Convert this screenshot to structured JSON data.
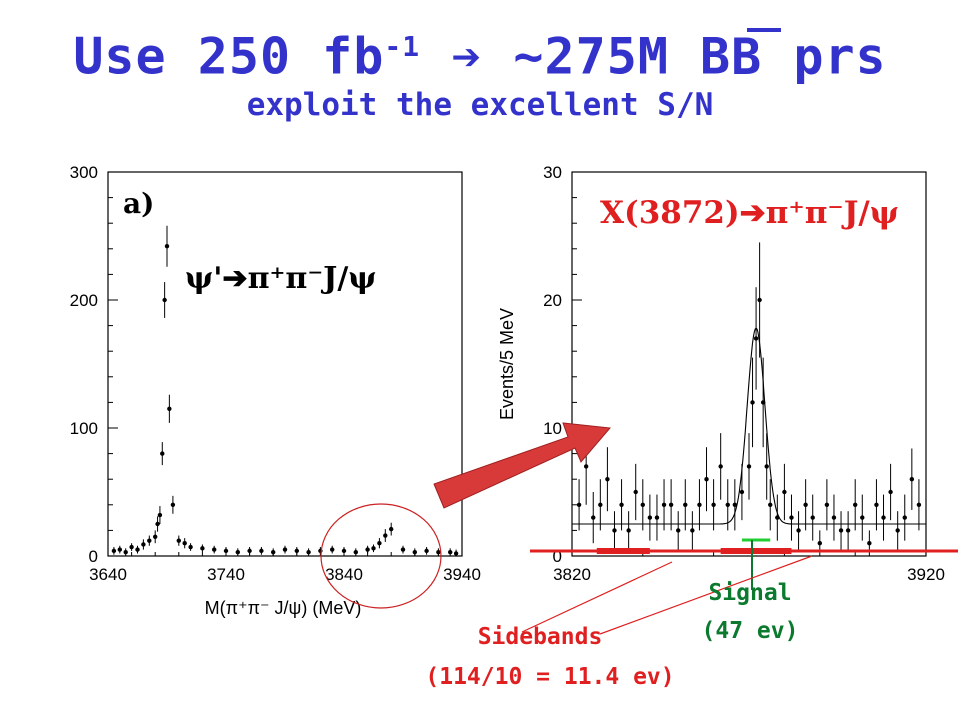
{
  "title": {
    "part1": "Use 250 fb",
    "sup": "-1",
    "arrow": "➔",
    "part2": "~275M B",
    "bbar": "B",
    "part3": " prs",
    "subtitle": "exploit the excellent S/N"
  },
  "annotations": {
    "signal_label": "Signal",
    "signal_count": "(47 ev)",
    "sidebands_label": "Sidebands",
    "sidebands_count": "(114/10 = 11.4 ev)"
  },
  "colors": {
    "title": "#3333cc",
    "signal": "#0b7a2e",
    "sideband": "#e02020",
    "arrow": "#d83a3a",
    "circle": "#cc2222"
  },
  "chart_data": [
    {
      "type": "scatter",
      "panel_label": "a)",
      "annotation": "ψ'➔π⁺π⁻J/ψ",
      "xlabel": "M(π⁺π⁻ J/ψ) (MeV)",
      "ylabel": "",
      "xlim": [
        3640,
        3940
      ],
      "ylim": [
        0,
        300
      ],
      "xticks": [
        3640,
        3740,
        3840,
        3940
      ],
      "yticks": [
        0,
        100,
        200,
        300
      ],
      "x": [
        3645,
        3650,
        3655,
        3660,
        3665,
        3670,
        3675,
        3680,
        3682,
        3684,
        3686,
        3688,
        3690,
        3692,
        3695,
        3700,
        3705,
        3710,
        3720,
        3730,
        3740,
        3750,
        3760,
        3770,
        3780,
        3790,
        3800,
        3810,
        3820,
        3830,
        3840,
        3850,
        3860,
        3865,
        3870,
        3875,
        3880,
        3890,
        3900,
        3910,
        3920,
        3930,
        3935
      ],
      "values": [
        4,
        5,
        3,
        7,
        5,
        9,
        12,
        15,
        25,
        32,
        80,
        200,
        242,
        115,
        40,
        12,
        10,
        7,
        6,
        5,
        4,
        3,
        4,
        4,
        3,
        5,
        4,
        3,
        4,
        5,
        4,
        3,
        5,
        6,
        10,
        16,
        21,
        5,
        3,
        4,
        3,
        3,
        2
      ],
      "errors": [
        3,
        3,
        3,
        3,
        3,
        4,
        4,
        5,
        6,
        7,
        9,
        14,
        16,
        11,
        7,
        4,
        4,
        3,
        3,
        3,
        3,
        3,
        3,
        3,
        3,
        3,
        3,
        3,
        3,
        3,
        3,
        3,
        3,
        3,
        4,
        5,
        5,
        3,
        3,
        3,
        3,
        3,
        3
      ]
    },
    {
      "type": "scatter",
      "annotation": "X(3872)➔π⁺π⁻J/ψ",
      "xlabel": "",
      "ylabel": "Events/5 MeV",
      "xlim": [
        3820,
        3920
      ],
      "ylim": [
        0,
        30
      ],
      "xticks": [
        3820,
        3920
      ],
      "yticks": [
        0,
        10,
        20,
        30
      ],
      "x": [
        3822,
        3824,
        3826,
        3828,
        3830,
        3832,
        3834,
        3836,
        3838,
        3840,
        3842,
        3844,
        3846,
        3848,
        3850,
        3852,
        3854,
        3856,
        3858,
        3860,
        3862,
        3864,
        3866,
        3868,
        3870,
        3871,
        3872,
        3873,
        3874,
        3875,
        3876,
        3878,
        3880,
        3882,
        3884,
        3886,
        3888,
        3890,
        3892,
        3894,
        3896,
        3898,
        3900,
        3902,
        3904,
        3906,
        3908,
        3910,
        3912,
        3914,
        3916,
        3918
      ],
      "values": [
        4,
        7,
        3,
        4,
        6,
        2,
        4,
        2,
        5,
        4,
        3,
        3,
        4,
        4,
        2,
        4,
        2,
        4,
        6,
        4,
        7,
        4,
        4,
        5,
        7,
        12,
        17,
        20,
        12,
        7,
        4,
        3,
        5,
        3,
        2,
        4,
        3,
        1,
        4,
        3,
        2,
        2,
        4,
        3,
        1,
        4,
        3,
        5,
        2,
        3,
        6,
        4
      ],
      "errors": [
        2,
        3,
        2,
        2,
        2.5,
        1.5,
        2,
        1.5,
        2.2,
        2,
        1.8,
        1.8,
        2,
        2,
        1.5,
        2,
        1.5,
        2,
        2.5,
        2,
        2.6,
        2,
        2,
        2.2,
        2.6,
        3.5,
        4,
        4.5,
        3.5,
        2.6,
        2,
        1.8,
        2.2,
        1.8,
        1.5,
        2,
        1.8,
        1,
        2,
        1.8,
        1.5,
        1.5,
        2,
        1.8,
        1,
        2,
        1.8,
        2.2,
        1.5,
        1.8,
        2.4,
        2
      ],
      "fit": {
        "background": 2.5,
        "amplitude": 15.3,
        "mean": 3872,
        "sigma": 2.5
      },
      "signal_window": [
        3868,
        3876
      ],
      "sidebands": [
        [
          3827,
          3842
        ],
        [
          3862,
          3882
        ]
      ]
    }
  ]
}
